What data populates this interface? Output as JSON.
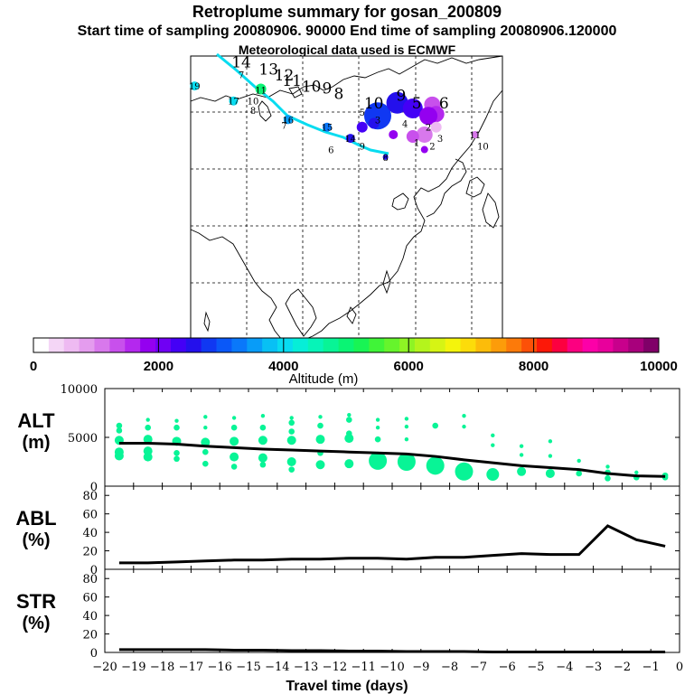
{
  "header": {
    "title": "Retroplume summary for gosan_200809",
    "sampling_line": "Start time of sampling 20080906. 90000      End time of sampling 20080906.120000",
    "met_line": "Meteorological data used is ECMWF"
  },
  "colorbar": {
    "label": "Altitude (m)",
    "tick_labels": [
      "0",
      "2000",
      "4000",
      "6000",
      "8000",
      "10000"
    ],
    "tick_values": [
      0,
      2000,
      4000,
      6000,
      8000,
      10000
    ],
    "range": [
      0,
      10000
    ],
    "colors": [
      "#ffffff",
      "#f4d6f6",
      "#eebaf2",
      "#e49cee",
      "#d878ec",
      "#c850ec",
      "#b428ee",
      "#9400f0",
      "#7000f4",
      "#4400f6",
      "#2410ec",
      "#1038f2",
      "#0a58f8",
      "#0a78fa",
      "#089cf8",
      "#08c0f4",
      "#08dcf0",
      "#06eed8",
      "#06f4b8",
      "#08f496",
      "#0af474",
      "#18f454",
      "#40f438",
      "#66f42c",
      "#8ef424",
      "#b4f41c",
      "#d6f414",
      "#f4f40c",
      "#fcdc0a",
      "#fcbc0a",
      "#fc9c0a",
      "#fc7a0a",
      "#fc5008",
      "#fc1808",
      "#fc0040",
      "#fc0080",
      "#fc00a8",
      "#e8009c",
      "#c8008c",
      "#a8007c",
      "#800068"
    ]
  },
  "map": {
    "trajectory_labels": [
      {
        "text": "14",
        "color": "#000000",
        "lon": 73,
        "lat": 57,
        "size": "large"
      },
      {
        "text": "13",
        "color": "#000000",
        "lon": 80,
        "lat": 55,
        "size": "large"
      },
      {
        "text": "12",
        "color": "#000000",
        "lon": 84,
        "lat": 53.5,
        "size": "large"
      },
      {
        "text": "11",
        "color": "#000000",
        "lon": 86,
        "lat": 52,
        "size": "large"
      },
      {
        "text": "10",
        "color": "#000000",
        "lon": 91,
        "lat": 50.5,
        "size": "large"
      },
      {
        "text": "9",
        "color": "#000000",
        "lon": 95,
        "lat": 50,
        "size": "large"
      },
      {
        "text": "8",
        "color": "#000000",
        "lon": 98,
        "lat": 48.5,
        "size": "large"
      },
      {
        "text": "9",
        "color": "#000000",
        "lon": 114,
        "lat": 48,
        "size": "large"
      },
      {
        "text": "10",
        "color": "#000000",
        "lon": 107,
        "lat": 46,
        "size": "large"
      },
      {
        "text": "5",
        "color": "#000000",
        "lon": 118,
        "lat": 46,
        "size": "large"
      },
      {
        "text": "6",
        "color": "#000000",
        "lon": 125,
        "lat": 46,
        "size": "large"
      }
    ],
    "cluster_labels": [
      {
        "text": "19",
        "color": "#08dcf0",
        "lon": 61,
        "lat": 52
      },
      {
        "text": "7",
        "color": "#f4f40c",
        "lon": 73,
        "lat": 55
      },
      {
        "text": "11",
        "color": "#0af474",
        "lon": 78,
        "lat": 51
      },
      {
        "text": "17",
        "color": "#08dcf0",
        "lon": 71,
        "lat": 48
      },
      {
        "text": "10",
        "color": "#b4f41c",
        "lon": 76,
        "lat": 48
      },
      {
        "text": "8",
        "color": "#f4f40c",
        "lon": 76,
        "lat": 45.5
      },
      {
        "text": "16",
        "color": "#089cf8",
        "lon": 85,
        "lat": 43
      },
      {
        "text": "7",
        "color": "#08c0f4",
        "lon": 84,
        "lat": 41.5
      },
      {
        "text": "15",
        "color": "#0a78fa",
        "lon": 95,
        "lat": 41
      },
      {
        "text": "5",
        "color": "#1038f2",
        "lon": 104,
        "lat": 45
      },
      {
        "text": "3",
        "color": "#4400f6",
        "lon": 108,
        "lat": 43
      },
      {
        "text": "4",
        "color": "#2410ec",
        "lon": 115,
        "lat": 42
      },
      {
        "text": "14",
        "color": "#2410ec",
        "lon": 101,
        "lat": 38
      },
      {
        "text": "6",
        "color": "#0af474",
        "lon": 96,
        "lat": 35
      },
      {
        "text": "9",
        "color": "#1038f2",
        "lon": 104,
        "lat": 36
      },
      {
        "text": "2",
        "color": "#b428ee",
        "lon": 121,
        "lat": 41
      },
      {
        "text": "1",
        "color": "#c850ec",
        "lon": 118,
        "lat": 37
      },
      {
        "text": "2",
        "color": "#d878ec",
        "lon": 122,
        "lat": 36
      },
      {
        "text": "3",
        "color": "#e49cee",
        "lon": 124,
        "lat": 38
      },
      {
        "text": "11",
        "color": "#d878ec",
        "lon": 133,
        "lat": 39
      },
      {
        "text": "10",
        "color": "#c850ec",
        "lon": 135,
        "lat": 36
      },
      {
        "text": "8",
        "color": "#2410ec",
        "lon": 110,
        "lat": 33
      }
    ]
  },
  "chart_data": [
    {
      "type": "scatter",
      "name": "ALT",
      "ylabel": "ALT (m)",
      "ylim": [
        0,
        10000
      ],
      "y_ticks": [
        0,
        5000,
        10000
      ],
      "xlim": [
        -20,
        0
      ],
      "line": {
        "x": [
          -19.5,
          -18.5,
          -17.5,
          -16.5,
          -15.5,
          -14.5,
          -13.5,
          -12.5,
          -11.5,
          -10.5,
          -9.5,
          -8.5,
          -7.5,
          -6.5,
          -5.5,
          -4.5,
          -3.5,
          -2.5,
          -1.5,
          -0.5
        ],
        "y": [
          4400,
          4400,
          4300,
          4100,
          3950,
          3800,
          3700,
          3600,
          3500,
          3400,
          3300,
          3050,
          2700,
          2400,
          2100,
          1900,
          1700,
          1300,
          1050,
          1000
        ]
      },
      "points": [
        {
          "x": -19.5,
          "y": 6200,
          "s": 1
        },
        {
          "x": -19.5,
          "y": 5700,
          "s": 1
        },
        {
          "x": -19.5,
          "y": 4700,
          "s": 2
        },
        {
          "x": -19.5,
          "y": 3500,
          "s": 2
        },
        {
          "x": -19.5,
          "y": 3100,
          "s": 2
        },
        {
          "x": -18.5,
          "y": 6800,
          "s": 0
        },
        {
          "x": -18.5,
          "y": 6000,
          "s": 1
        },
        {
          "x": -18.5,
          "y": 4800,
          "s": 2
        },
        {
          "x": -18.5,
          "y": 3600,
          "s": 2
        },
        {
          "x": -18.5,
          "y": 3000,
          "s": 2
        },
        {
          "x": -17.5,
          "y": 6700,
          "s": 0
        },
        {
          "x": -17.5,
          "y": 6000,
          "s": 1
        },
        {
          "x": -17.5,
          "y": 4600,
          "s": 2
        },
        {
          "x": -17.5,
          "y": 3400,
          "s": 1
        },
        {
          "x": -17.5,
          "y": 2800,
          "s": 1
        },
        {
          "x": -16.5,
          "y": 7100,
          "s": 0
        },
        {
          "x": -16.5,
          "y": 6000,
          "s": 0
        },
        {
          "x": -16.5,
          "y": 4500,
          "s": 2
        },
        {
          "x": -16.5,
          "y": 3500,
          "s": 1
        },
        {
          "x": -16.5,
          "y": 2300,
          "s": 1
        },
        {
          "x": -15.5,
          "y": 7000,
          "s": 0
        },
        {
          "x": -15.5,
          "y": 6000,
          "s": 1
        },
        {
          "x": -15.5,
          "y": 4600,
          "s": 2
        },
        {
          "x": -15.5,
          "y": 3000,
          "s": 2
        },
        {
          "x": -15.5,
          "y": 2000,
          "s": 1
        },
        {
          "x": -14.5,
          "y": 7200,
          "s": 0
        },
        {
          "x": -14.5,
          "y": 6000,
          "s": 1
        },
        {
          "x": -14.5,
          "y": 4700,
          "s": 2
        },
        {
          "x": -14.5,
          "y": 2900,
          "s": 2
        },
        {
          "x": -14.5,
          "y": 2200,
          "s": 1
        },
        {
          "x": -13.5,
          "y": 7000,
          "s": 0
        },
        {
          "x": -13.5,
          "y": 6500,
          "s": 1
        },
        {
          "x": -13.5,
          "y": 5600,
          "s": 1
        },
        {
          "x": -13.5,
          "y": 4700,
          "s": 2
        },
        {
          "x": -13.5,
          "y": 2500,
          "s": 2
        },
        {
          "x": -13.5,
          "y": 1700,
          "s": 1
        },
        {
          "x": -12.5,
          "y": 7100,
          "s": 0
        },
        {
          "x": -12.5,
          "y": 6200,
          "s": 1
        },
        {
          "x": -12.5,
          "y": 4800,
          "s": 2
        },
        {
          "x": -12.5,
          "y": 3400,
          "s": 1
        },
        {
          "x": -12.5,
          "y": 2200,
          "s": 2
        },
        {
          "x": -11.5,
          "y": 7300,
          "s": 0
        },
        {
          "x": -11.5,
          "y": 6800,
          "s": 1
        },
        {
          "x": -11.5,
          "y": 5400,
          "s": 1
        },
        {
          "x": -11.5,
          "y": 4900,
          "s": 2
        },
        {
          "x": -11.5,
          "y": 2300,
          "s": 2
        },
        {
          "x": -10.5,
          "y": 6800,
          "s": 0
        },
        {
          "x": -10.5,
          "y": 6000,
          "s": 0
        },
        {
          "x": -10.5,
          "y": 4800,
          "s": 1
        },
        {
          "x": -10.5,
          "y": 2600,
          "s": 4
        },
        {
          "x": -9.5,
          "y": 6900,
          "s": 0
        },
        {
          "x": -9.5,
          "y": 6100,
          "s": 0
        },
        {
          "x": -9.5,
          "y": 4800,
          "s": 0
        },
        {
          "x": -9.5,
          "y": 2500,
          "s": 4
        },
        {
          "x": -8.5,
          "y": 6200,
          "s": 1
        },
        {
          "x": -8.5,
          "y": 2100,
          "s": 4
        },
        {
          "x": -7.5,
          "y": 7200,
          "s": 0
        },
        {
          "x": -7.5,
          "y": 6100,
          "s": 0
        },
        {
          "x": -7.5,
          "y": 1500,
          "s": 4
        },
        {
          "x": -6.5,
          "y": 5200,
          "s": 0
        },
        {
          "x": -6.5,
          "y": 4200,
          "s": 0
        },
        {
          "x": -6.5,
          "y": 1200,
          "s": 3
        },
        {
          "x": -5.5,
          "y": 4100,
          "s": 0
        },
        {
          "x": -5.5,
          "y": 3200,
          "s": 0
        },
        {
          "x": -5.5,
          "y": 1500,
          "s": 2
        },
        {
          "x": -4.5,
          "y": 4600,
          "s": 0
        },
        {
          "x": -4.5,
          "y": 3100,
          "s": 0
        },
        {
          "x": -4.5,
          "y": 1300,
          "s": 2
        },
        {
          "x": -3.5,
          "y": 2600,
          "s": 0
        },
        {
          "x": -3.5,
          "y": 1300,
          "s": 1
        },
        {
          "x": -2.5,
          "y": 2000,
          "s": 0
        },
        {
          "x": -2.5,
          "y": 1400,
          "s": 1
        },
        {
          "x": -2.5,
          "y": 800,
          "s": 1
        },
        {
          "x": -1.5,
          "y": 1400,
          "s": 0
        },
        {
          "x": -1.5,
          "y": 900,
          "s": 1
        },
        {
          "x": -0.5,
          "y": 1100,
          "s": 1
        },
        {
          "x": -0.5,
          "y": 900,
          "s": 1
        }
      ]
    },
    {
      "type": "line",
      "name": "ABL",
      "ylabel": "ABL (%)",
      "ylim": [
        0,
        90
      ],
      "y_ticks": [
        0,
        20,
        40,
        60,
        80
      ],
      "xlim": [
        -20,
        0
      ],
      "x": [
        -19.5,
        -18.5,
        -17.5,
        -16.5,
        -15.5,
        -14.5,
        -13.5,
        -12.5,
        -11.5,
        -10.5,
        -9.5,
        -8.5,
        -7.5,
        -6.5,
        -5.5,
        -4.5,
        -3.5,
        -2.5,
        -1.5,
        -0.5
      ],
      "y": [
        7,
        7,
        8,
        9,
        10,
        10,
        11,
        11,
        12,
        12,
        11,
        13,
        13,
        15,
        17,
        16,
        16,
        47,
        32,
        25
      ]
    },
    {
      "type": "line",
      "name": "STR",
      "ylabel": "STR (%)",
      "ylim": [
        0,
        90
      ],
      "y_ticks": [
        0,
        20,
        40,
        60,
        80
      ],
      "xlim": [
        -20,
        0
      ],
      "xlabel": "Travel time (days)",
      "x_ticks": [
        -20,
        -19,
        -18,
        -17,
        -16,
        -15,
        -14,
        -13,
        -12,
        -11,
        -10,
        -9,
        -8,
        -7,
        -6,
        -5,
        -4,
        -3,
        -2,
        -1,
        0
      ],
      "x": [
        -19.5,
        -18.5,
        -17.5,
        -16.5,
        -15.5,
        -14.5,
        -13.5,
        -12.5,
        -11.5,
        -10.5,
        -9.5,
        -8.5,
        -7.5,
        -6.5,
        -5.5,
        -4.5,
        -3.5,
        -2.5,
        -1.5,
        -0.5
      ],
      "y": [
        3,
        3,
        3,
        3,
        2.5,
        2.5,
        2,
        2,
        1.5,
        1.5,
        1,
        1,
        1,
        0.5,
        0.5,
        0.5,
        0.5,
        0.5,
        0.5,
        0.5
      ]
    }
  ],
  "panels": {
    "alt": {
      "label_top": "ALT",
      "label_bottom": "(m)"
    },
    "abl": {
      "label_top": "ABL",
      "label_bottom": "(%)"
    },
    "str": {
      "label_top": "STR",
      "label_bottom": "(%)"
    }
  }
}
